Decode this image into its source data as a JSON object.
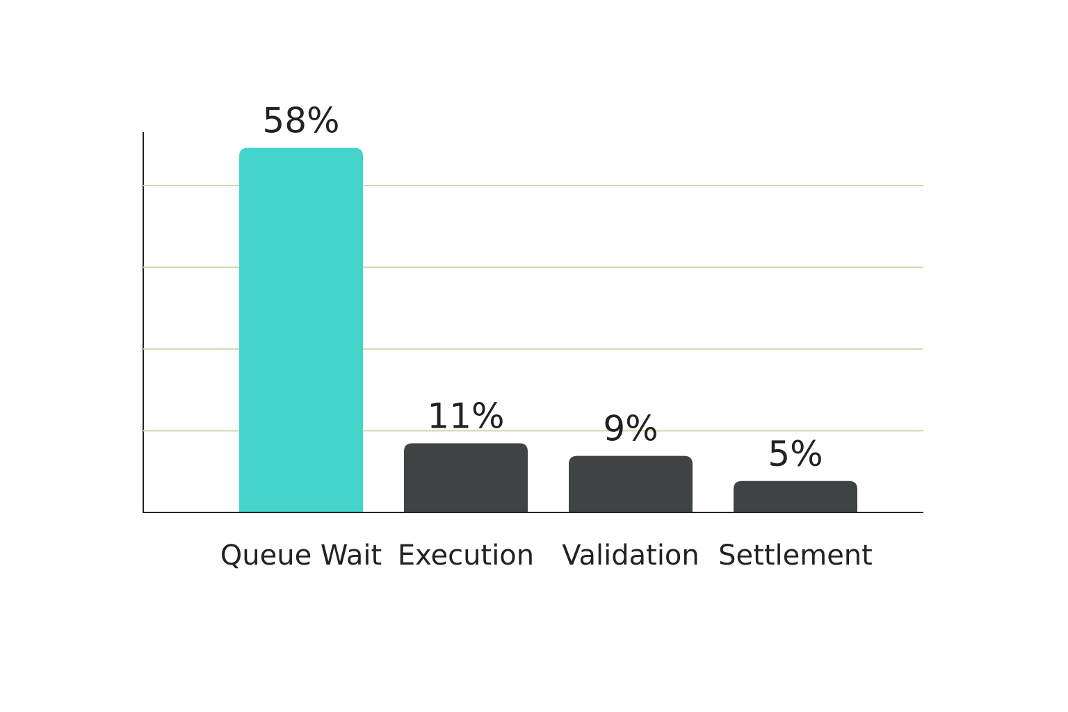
{
  "chart_data": {
    "type": "bar",
    "categories": [
      "Queue Wait",
      "Execution",
      "Validation",
      "Settlement"
    ],
    "values": [
      58,
      11,
      9,
      5
    ],
    "value_labels": [
      "58%",
      "11%",
      "9%",
      "5%"
    ],
    "colors": [
      "#45d4cb",
      "#404344",
      "#404344",
      "#404344"
    ],
    "ylim": [
      0,
      60.5
    ],
    "yticks": [
      13,
      26,
      39,
      52
    ],
    "grid": true
  }
}
